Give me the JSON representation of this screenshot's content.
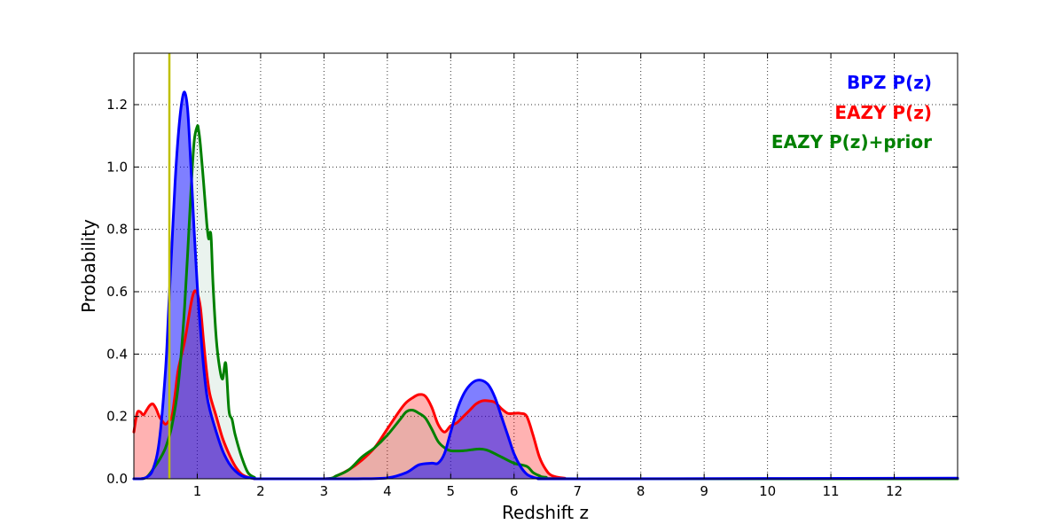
{
  "chart_data": {
    "type": "line",
    "xlabel": "Redshift z",
    "ylabel": "Probability",
    "xlim": [
      0,
      13
    ],
    "ylim": [
      0,
      1.365
    ],
    "x_ticks": [
      1,
      2,
      3,
      4,
      5,
      6,
      7,
      8,
      9,
      10,
      11,
      12
    ],
    "x_tick_labels": [
      "1",
      "2",
      "3",
      "4",
      "5",
      "6",
      "7",
      "8",
      "9",
      "10",
      "11",
      "12"
    ],
    "y_ticks": [
      0.0,
      0.2,
      0.4,
      0.6,
      0.8,
      1.0,
      1.2
    ],
    "y_tick_labels": [
      "0.0",
      "0.2",
      "0.4",
      "0.6",
      "0.8",
      "1.0",
      "1.2"
    ],
    "grid": true,
    "legend_position": "top-right",
    "reference_line": {
      "x": 0.56,
      "color": "#bfbf00"
    },
    "series": [
      {
        "name": "BPZ P(z)",
        "color": "#0000ff",
        "fill": "#0000ff",
        "fill_opacity": 0.5,
        "x": [
          0.0,
          0.1,
          0.2,
          0.3,
          0.4,
          0.5,
          0.55,
          0.6,
          0.65,
          0.7,
          0.75,
          0.8,
          0.85,
          0.9,
          0.95,
          1.0,
          1.05,
          1.1,
          1.15,
          1.2,
          1.3,
          1.4,
          1.5,
          1.6,
          1.7,
          1.8,
          1.9,
          2.0,
          3.0,
          3.5,
          4.0,
          4.3,
          4.5,
          4.7,
          4.8,
          4.9,
          5.0,
          5.1,
          5.2,
          5.3,
          5.4,
          5.5,
          5.6,
          5.7,
          5.8,
          5.9,
          6.0,
          6.1,
          6.2,
          6.3,
          6.4,
          6.5,
          7.0,
          13.0
        ],
        "y": [
          0.0,
          0.0,
          0.005,
          0.03,
          0.12,
          0.35,
          0.55,
          0.75,
          0.95,
          1.1,
          1.2,
          1.24,
          1.18,
          1.0,
          0.8,
          0.62,
          0.48,
          0.36,
          0.27,
          0.22,
          0.15,
          0.09,
          0.05,
          0.025,
          0.01,
          0.004,
          0.001,
          0.0,
          0.0,
          0.0,
          0.003,
          0.02,
          0.045,
          0.05,
          0.05,
          0.08,
          0.15,
          0.22,
          0.27,
          0.3,
          0.315,
          0.315,
          0.3,
          0.26,
          0.2,
          0.14,
          0.08,
          0.04,
          0.015,
          0.005,
          0.001,
          0.0,
          0.0,
          0.002
        ]
      },
      {
        "name": "EAZY P(z)",
        "color": "#ff0000",
        "fill": "#ff0000",
        "fill_opacity": 0.3,
        "x": [
          0.0,
          0.05,
          0.1,
          0.15,
          0.2,
          0.25,
          0.3,
          0.35,
          0.4,
          0.45,
          0.5,
          0.55,
          0.6,
          0.65,
          0.7,
          0.8,
          0.9,
          0.95,
          1.0,
          1.05,
          1.1,
          1.15,
          1.2,
          1.3,
          1.4,
          1.5,
          1.6,
          1.7,
          1.8,
          1.9,
          2.0,
          3.0,
          3.2,
          3.4,
          3.6,
          3.8,
          4.0,
          4.2,
          4.3,
          4.4,
          4.5,
          4.6,
          4.7,
          4.8,
          4.9,
          5.0,
          5.1,
          5.2,
          5.3,
          5.4,
          5.5,
          5.6,
          5.7,
          5.8,
          5.9,
          6.0,
          6.1,
          6.2,
          6.3,
          6.4,
          6.5,
          6.6,
          6.8,
          7.0,
          13.0
        ],
        "y": [
          0.15,
          0.21,
          0.215,
          0.205,
          0.22,
          0.235,
          0.24,
          0.225,
          0.2,
          0.185,
          0.175,
          0.185,
          0.2,
          0.27,
          0.35,
          0.44,
          0.56,
          0.6,
          0.595,
          0.55,
          0.44,
          0.34,
          0.27,
          0.2,
          0.13,
          0.08,
          0.04,
          0.015,
          0.005,
          0.001,
          0.0,
          0.0,
          0.01,
          0.03,
          0.06,
          0.1,
          0.16,
          0.22,
          0.245,
          0.26,
          0.27,
          0.265,
          0.23,
          0.175,
          0.15,
          0.17,
          0.18,
          0.2,
          0.22,
          0.24,
          0.25,
          0.25,
          0.245,
          0.225,
          0.21,
          0.21,
          0.21,
          0.2,
          0.14,
          0.07,
          0.03,
          0.01,
          0.002,
          0.0,
          0.0
        ]
      },
      {
        "name": "EAZY P(z)+prior",
        "color": "#008000",
        "fill": "#2e8b57",
        "fill_opacity": 0.1,
        "x": [
          0.0,
          0.1,
          0.2,
          0.3,
          0.4,
          0.5,
          0.6,
          0.7,
          0.8,
          0.9,
          0.95,
          1.0,
          1.02,
          1.05,
          1.1,
          1.15,
          1.18,
          1.2,
          1.22,
          1.25,
          1.3,
          1.35,
          1.4,
          1.45,
          1.5,
          1.55,
          1.6,
          1.7,
          1.8,
          1.9,
          2.0,
          3.0,
          3.2,
          3.4,
          3.6,
          3.8,
          4.0,
          4.2,
          4.3,
          4.4,
          4.5,
          4.6,
          4.7,
          4.8,
          4.9,
          5.0,
          5.2,
          5.4,
          5.5,
          5.6,
          5.8,
          6.0,
          6.2,
          6.3,
          6.4,
          6.5,
          7.0,
          13.0
        ],
        "y": [
          0.0,
          0.0,
          0.005,
          0.03,
          0.06,
          0.1,
          0.17,
          0.3,
          0.55,
          0.92,
          1.08,
          1.13,
          1.12,
          1.07,
          0.95,
          0.82,
          0.77,
          0.79,
          0.77,
          0.62,
          0.45,
          0.36,
          0.32,
          0.37,
          0.22,
          0.19,
          0.14,
          0.07,
          0.02,
          0.005,
          0.0,
          0.0,
          0.01,
          0.03,
          0.07,
          0.1,
          0.14,
          0.19,
          0.215,
          0.22,
          0.21,
          0.195,
          0.16,
          0.12,
          0.1,
          0.09,
          0.09,
          0.095,
          0.095,
          0.09,
          0.07,
          0.05,
          0.04,
          0.02,
          0.01,
          0.005,
          0.0,
          0.0
        ]
      }
    ]
  }
}
